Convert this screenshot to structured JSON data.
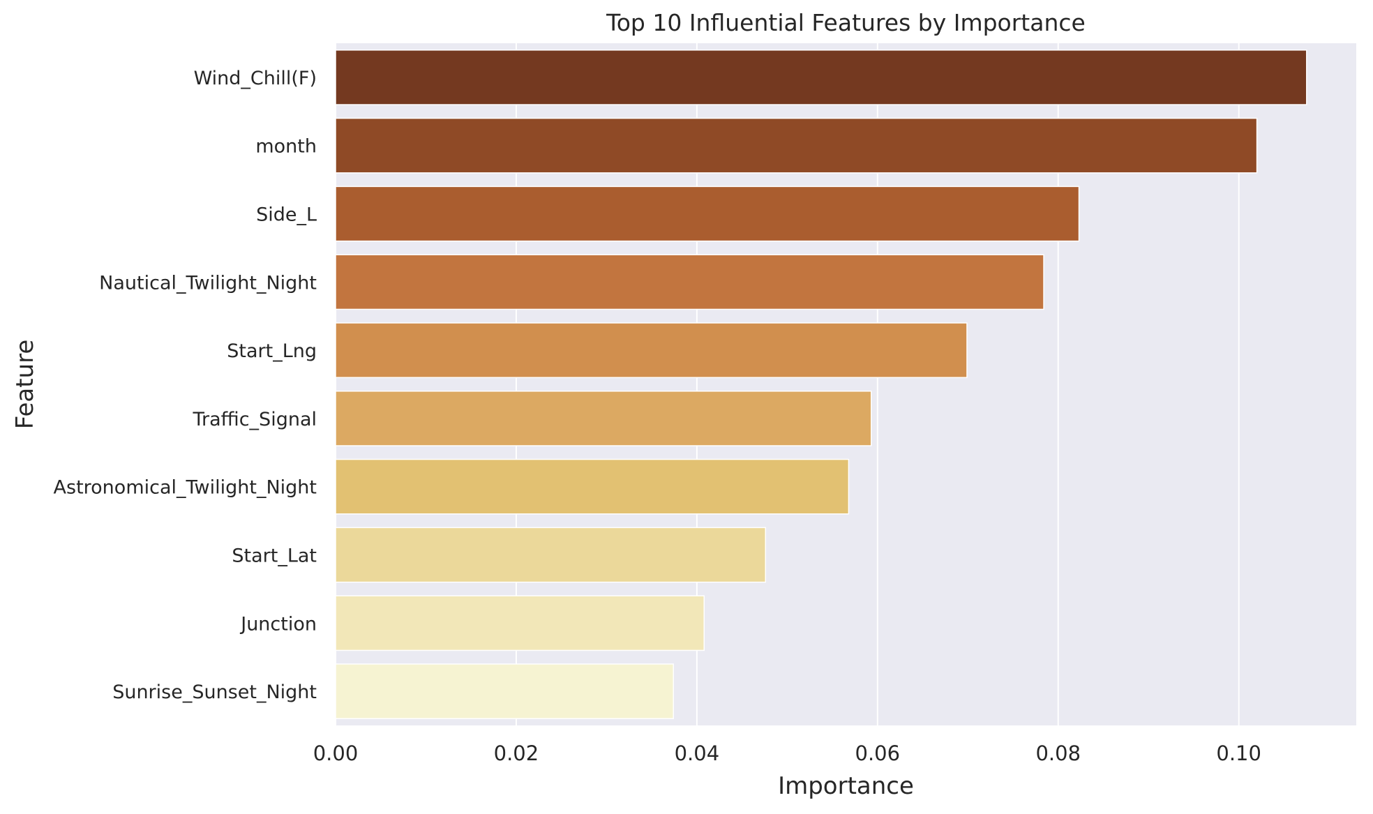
{
  "chart_data": {
    "type": "bar",
    "orientation": "horizontal",
    "title": "Top 10 Influential Features by Importance",
    "xlabel": "Importance",
    "ylabel": "Feature",
    "xlim": [
      0,
      0.113
    ],
    "xticks": [
      0.0,
      0.02,
      0.04,
      0.06,
      0.08,
      0.1
    ],
    "xtick_labels": [
      "0.00",
      "0.02",
      "0.04",
      "0.06",
      "0.08",
      "0.10"
    ],
    "grid": true,
    "categories": [
      "Wind_Chill(F)",
      "month",
      "Side_L",
      "Nautical_Twilight_Night",
      "Start_Lng",
      "Traffic_Signal",
      "Astronomical_Twilight_Night",
      "Start_Lat",
      "Junction",
      "Sunrise_Sunset_Night"
    ],
    "values": [
      0.1075,
      0.102,
      0.0823,
      0.0784,
      0.0699,
      0.0593,
      0.0568,
      0.0476,
      0.0408,
      0.0374
    ],
    "colors": [
      "#743920",
      "#8f4a26",
      "#aa5d2f",
      "#c2753f",
      "#d18f4e",
      "#dca962",
      "#e2c172",
      "#ebd89a",
      "#f2e7b8",
      "#f6f3d2"
    ],
    "background_color": "#eaeaf2",
    "grid_color": "#ffffff"
  }
}
